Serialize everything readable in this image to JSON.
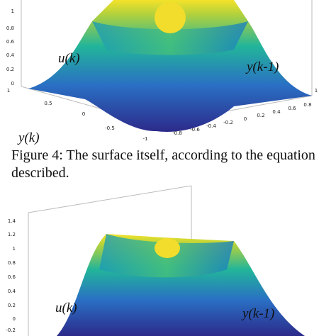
{
  "figures": [
    {
      "z_ticks": [
        "1",
        "0.8",
        "0.6",
        "0.4",
        "0.2",
        "0"
      ],
      "x_ticks": [
        "1",
        "0.5",
        "0",
        "-0.5",
        "-1"
      ],
      "y_ticks": [
        "-0.8",
        "-0.6",
        "-0.4",
        "-0.2",
        "0",
        "0.2",
        "0.4",
        "0.6",
        "0.8",
        "1"
      ],
      "labels": [
        "u(k)",
        "y(k-1)",
        "y(k)"
      ],
      "caption": [
        "Figure 4: The surface itself, according to the equation",
        "described."
      ]
    },
    {
      "z_ticks": [
        "1.4",
        "1.2",
        "1",
        "0.8",
        "0.6",
        "0.4",
        "0.2",
        "0",
        "-0.2"
      ],
      "labels": [
        "u(k)",
        "y(k-1)"
      ]
    }
  ]
}
